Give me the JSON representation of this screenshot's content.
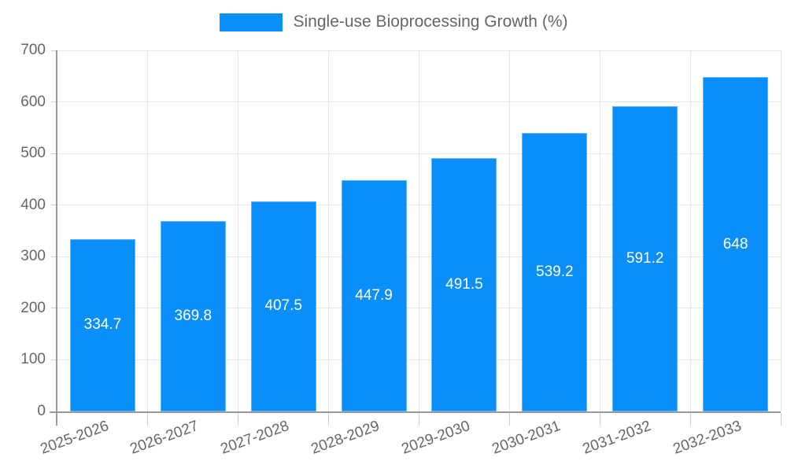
{
  "chart_data": {
    "type": "bar",
    "title": "",
    "legend": {
      "label": "Single-use Bioprocessing Growth (%)",
      "position": "top"
    },
    "categories": [
      "2025-2026",
      "2026-2027",
      "2027-2028",
      "2028-2029",
      "2029-2030",
      "2030-2031",
      "2031-2032",
      "2032-2033"
    ],
    "values": [
      334.7,
      369.8,
      407.5,
      447.9,
      491.5,
      539.2,
      591.2,
      648
    ],
    "xlabel": "",
    "ylabel": "",
    "ylim": [
      0,
      700
    ],
    "ytick_step": 100,
    "ytick_labels": [
      "0",
      "100",
      "200",
      "300",
      "400",
      "500",
      "600",
      "700"
    ],
    "grid": true,
    "bar_label_position": "center-inside",
    "xtick_rotation_deg": -20,
    "colors": {
      "bar": "#0a8ef9",
      "grid": "#e6e6e6",
      "axis": "#999999",
      "tick_text": "#666666",
      "value_text": "#ffffff",
      "background": "#ffffff"
    }
  }
}
